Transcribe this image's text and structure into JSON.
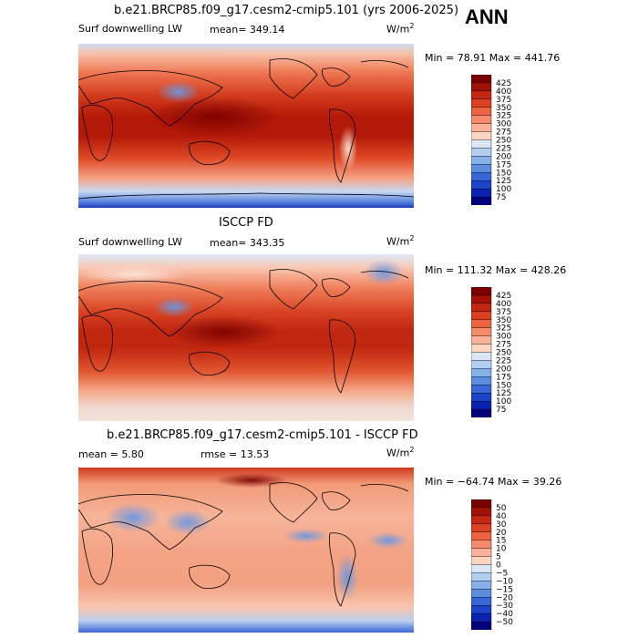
{
  "season": "ANN",
  "chart_data": [
    {
      "type": "heatmap",
      "title": "b.e21.BRCP85.f09_g17.cesm2-cmip5.101 (yrs 2006-2025)",
      "variable": "Surf downwelling LW",
      "stat_label": "mean=",
      "stat_value": "349.14",
      "units": "W/m",
      "units_exp": "2",
      "min_label": "Min =",
      "min_value": "78.91",
      "max_label": "Max =",
      "max_value": "441.76",
      "colorbar": {
        "levels": [
          "425",
          "400",
          "375",
          "350",
          "325",
          "300",
          "275",
          "250",
          "225",
          "200",
          "175",
          "150",
          "125",
          "100",
          "75"
        ],
        "colors": [
          "#7a0000",
          "#a11205",
          "#c32710",
          "#db4020",
          "#ed6342",
          "#f48a6a",
          "#f9b197",
          "#fcd4c0",
          "#d9e6f6",
          "#b1cdf0",
          "#87afe8",
          "#5c8ee0",
          "#3868d8",
          "#1c44c8",
          "#0a22b0",
          "#00007a"
        ]
      }
    },
    {
      "type": "heatmap",
      "title": "ISCCP FD",
      "variable": "Surf downwelling LW",
      "stat_label": "mean=",
      "stat_value": "343.35",
      "units": "W/m",
      "units_exp": "2",
      "min_label": "Min =",
      "min_value": "111.32",
      "max_label": "Max =",
      "max_value": "428.26",
      "colorbar": {
        "levels": [
          "425",
          "400",
          "375",
          "350",
          "325",
          "300",
          "275",
          "250",
          "225",
          "200",
          "175",
          "150",
          "125",
          "100",
          "75"
        ],
        "colors": [
          "#7a0000",
          "#a11205",
          "#c32710",
          "#db4020",
          "#ed6342",
          "#f48a6a",
          "#f9b197",
          "#fcd4c0",
          "#d9e6f6",
          "#b1cdf0",
          "#87afe8",
          "#5c8ee0",
          "#3868d8",
          "#1c44c8",
          "#0a22b0",
          "#00007a"
        ]
      }
    },
    {
      "type": "heatmap",
      "title": "b.e21.BRCP85.f09_g17.cesm2-cmip5.101 - ISCCP FD",
      "stat_label": "mean =",
      "stat_value": "5.80",
      "rmse_label": "rmse =",
      "rmse_value": "13.53",
      "units": "W/m",
      "units_exp": "2",
      "min_label": "Min =",
      "min_value": "−64.74",
      "max_label": "Max =",
      "max_value": "39.26",
      "colorbar": {
        "levels": [
          "50",
          "40",
          "30",
          "20",
          "15",
          "10",
          "5",
          "0",
          "−5",
          "−10",
          "−15",
          "−20",
          "−30",
          "−40",
          "−50"
        ],
        "colors": [
          "#7a0000",
          "#a11205",
          "#c32710",
          "#db4020",
          "#ed6342",
          "#f48a6a",
          "#f9b197",
          "#fcd4c0",
          "#d9e6f6",
          "#b1cdf0",
          "#87afe8",
          "#5c8ee0",
          "#3868d8",
          "#1c44c8",
          "#0a22b0",
          "#00007a"
        ]
      }
    }
  ]
}
